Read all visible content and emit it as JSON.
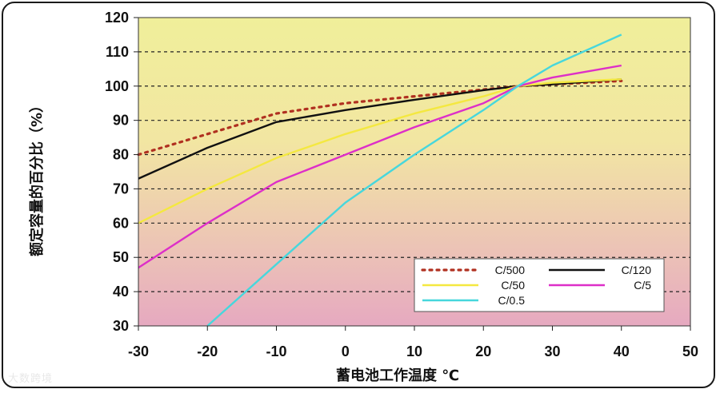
{
  "watermark": "大数跨境",
  "chart_data": {
    "type": "line",
    "xlabel": "蓄电池工作温度 ℃",
    "ylabel": "额定容量的百分比（%）",
    "xlim": [
      -30,
      50
    ],
    "ylim": [
      30,
      120
    ],
    "x_ticks": [
      -30,
      -20,
      -10,
      0,
      10,
      20,
      30,
      40,
      50
    ],
    "y_ticks": [
      30,
      40,
      50,
      60,
      70,
      80,
      90,
      100,
      110,
      120
    ],
    "grid": "horizontal-dashed",
    "legend_position": "bottom-right",
    "series": [
      {
        "name": "C/500",
        "color": "#b03020",
        "style": "dotted",
        "x": [
          -30,
          -20,
          -10,
          0,
          10,
          20,
          25,
          30,
          40
        ],
        "y": [
          80,
          86,
          92,
          95,
          97,
          99,
          100,
          100.5,
          101.5
        ]
      },
      {
        "name": "C/120",
        "color": "#111111",
        "style": "solid",
        "x": [
          -30,
          -20,
          -10,
          0,
          10,
          20,
          25,
          30,
          40
        ],
        "y": [
          73,
          82,
          89.5,
          93,
          96,
          98.8,
          100,
          100.5,
          102
        ]
      },
      {
        "name": "C/50",
        "color": "#f4e840",
        "style": "solid",
        "x": [
          -30,
          -20,
          -10,
          0,
          10,
          20,
          25,
          30,
          40
        ],
        "y": [
          60,
          70,
          79,
          86,
          92,
          97,
          100,
          101,
          102
        ]
      },
      {
        "name": "C/5",
        "color": "#dd2fc8",
        "style": "solid",
        "x": [
          -30,
          -20,
          -10,
          0,
          10,
          20,
          25,
          30,
          40
        ],
        "y": [
          47,
          60,
          72,
          80,
          88,
          95,
          100,
          102.5,
          106
        ]
      },
      {
        "name": "C/0.5",
        "color": "#47d7dc",
        "style": "solid",
        "x": [
          -20,
          -10,
          0,
          10,
          20,
          25,
          30,
          40
        ],
        "y": [
          30,
          48,
          66,
          80,
          93,
          100,
          106,
          115
        ]
      }
    ]
  }
}
